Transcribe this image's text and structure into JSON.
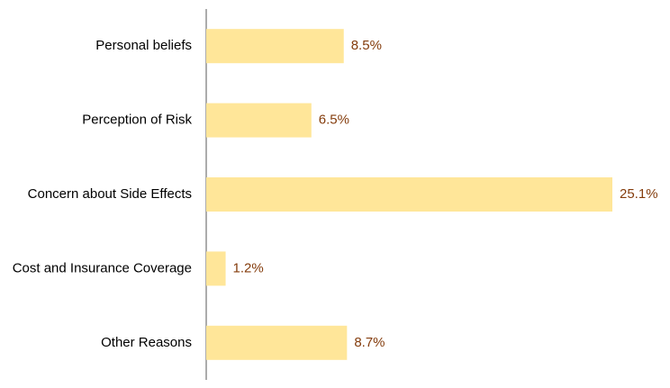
{
  "chart_data": {
    "type": "bar",
    "orientation": "horizontal",
    "categories": [
      "Personal beliefs",
      "Perception of Risk",
      "Concern about Side Effects",
      "Cost and Insurance Coverage",
      "Other Reasons"
    ],
    "values": [
      8.5,
      6.5,
      25.1,
      1.2,
      8.7
    ],
    "value_labels": [
      "8.5%",
      "6.5%",
      "25.1%",
      "1.2%",
      "8.7%"
    ],
    "unit": "%",
    "title": "",
    "xlabel": "",
    "ylabel": "",
    "xlim": [
      0,
      25.1
    ],
    "grid": false,
    "legend": "none",
    "colors": {
      "bar": "#FFE699",
      "label": "#843C0C",
      "axis": "#595959",
      "text": "#000000"
    }
  }
}
